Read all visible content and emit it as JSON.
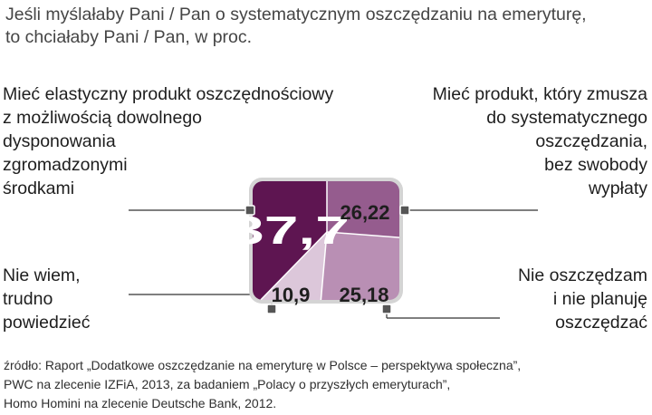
{
  "subtitle_lines": [
    "Jeśli myślałaby Pani / Pan o systematycznym oszczędzaniu na emeryturę,",
    "to chciałaby Pani / Pan, w proc."
  ],
  "labels": {
    "top_left": [
      "Mieć elastyczny produkt oszczędnościowy",
      "z możliwością dowolnego",
      "dysponowania",
      "zgromadzonymi",
      "środkami"
    ],
    "top_right": [
      "Mieć produkt, który zmusza",
      "do systematycznego",
      "oszczędzania,",
      "bez swobody",
      "wypłaty"
    ],
    "bottom_left": [
      "Nie wiem,",
      "trudno",
      "powiedzieć"
    ],
    "bottom_right": [
      "Nie oszczędzam",
      "i nie planuję",
      "oszczędzać"
    ]
  },
  "source_lines": [
    "źródło: Raport „Dodatkowe oszczędzanie na emeryturę w Polsce – perspektywa społeczna”,",
    "PWC na zlecenie IZFiA, 2013, za badaniem „Polacy o przyszłych emeryturach”,",
    "Homo Homini na zlecenie Deutsche Bank, 2012."
  ],
  "chart_data": {
    "type": "pie",
    "shape": "rounded-square",
    "categories": [
      "Mieć elastyczny produkt oszczędnościowy z możliwością dowolnego dysponowania zgromadzonymi środkami",
      "Mieć produkt, który zmusza do systematycznego oszczędzania, bez swobody wypłaty",
      "Nie oszczędzam i nie planuję oszczędzać",
      "Nie wiem, trudno powiedzieć"
    ],
    "values": [
      37.7,
      26.22,
      25.18,
      10.9
    ],
    "value_labels": [
      "37,7",
      "26,22",
      "25,18",
      "10,9"
    ],
    "colors": [
      "#5e1551",
      "#955c8e",
      "#b98fb4",
      "#dcc7da"
    ],
    "label_colors": [
      "#ffffff",
      "#1e1e1e",
      "#1e1e1e",
      "#1e1e1e"
    ]
  }
}
